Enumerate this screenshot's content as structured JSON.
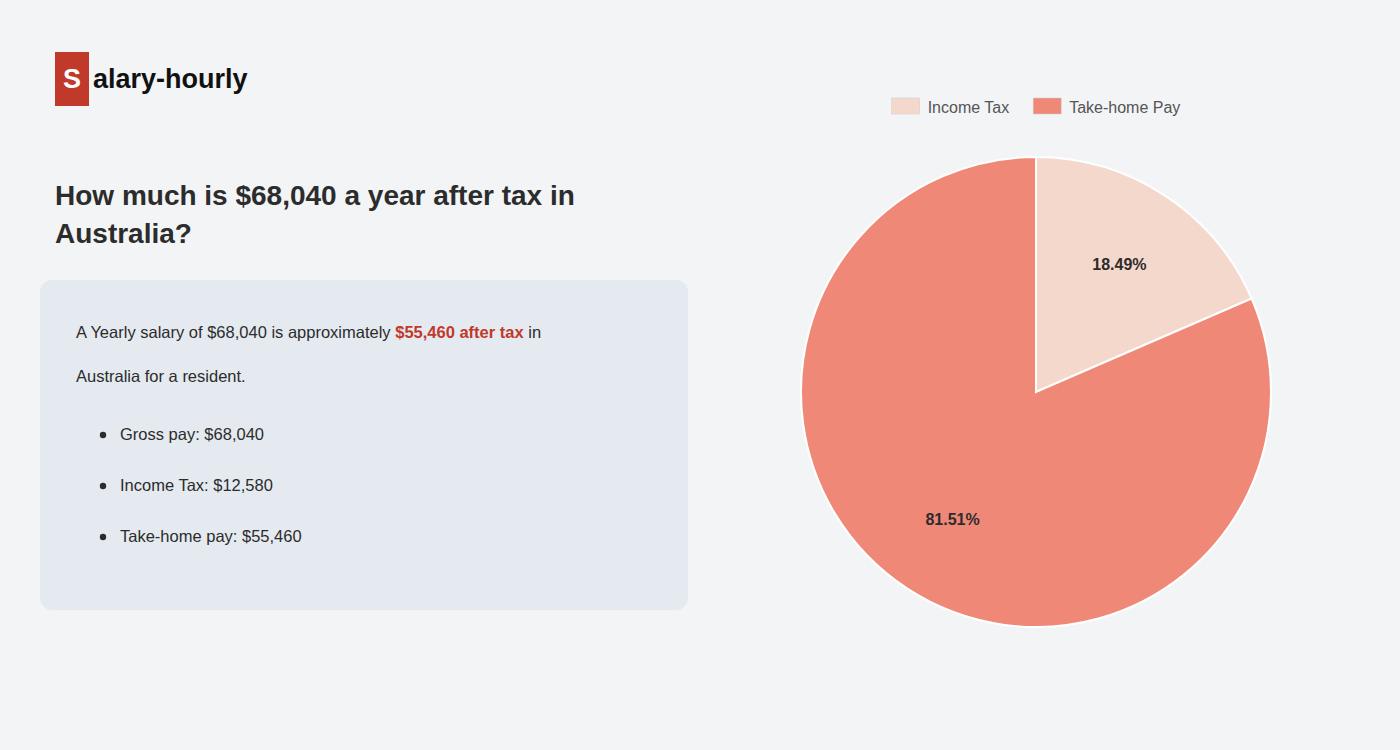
{
  "chart_data": {
    "type": "pie",
    "title": "How much is $68,040 a year after tax in\nAustralia?",
    "annotations": [
      {
        "text": "S",
        "color": "#c0392b"
      },
      {
        "text": "alary-hourly"
      },
      {
        "text": "A Yearly salary of $68,040 is approximately "
      },
      {
        "text": "$55,460 after tax",
        "color": "#c0392b"
      },
      {
        "text": " in"
      },
      {
        "text": "Australia for a resident."
      },
      {
        "text": "Gross pay: $68,040"
      },
      {
        "text": "Income Tax: $12,580"
      },
      {
        "text": "Take-home pay: $55,460"
      }
    ],
    "categories": [
      "Income Tax",
      "Take-home Pay"
    ],
    "values": [
      18.49,
      81.51
    ],
    "value_labels": [
      "18.49%",
      "81.51%"
    ],
    "colors": [
      "#f5d8cc",
      "#f08878"
    ],
    "data_labels": true,
    "legend": "top"
  }
}
